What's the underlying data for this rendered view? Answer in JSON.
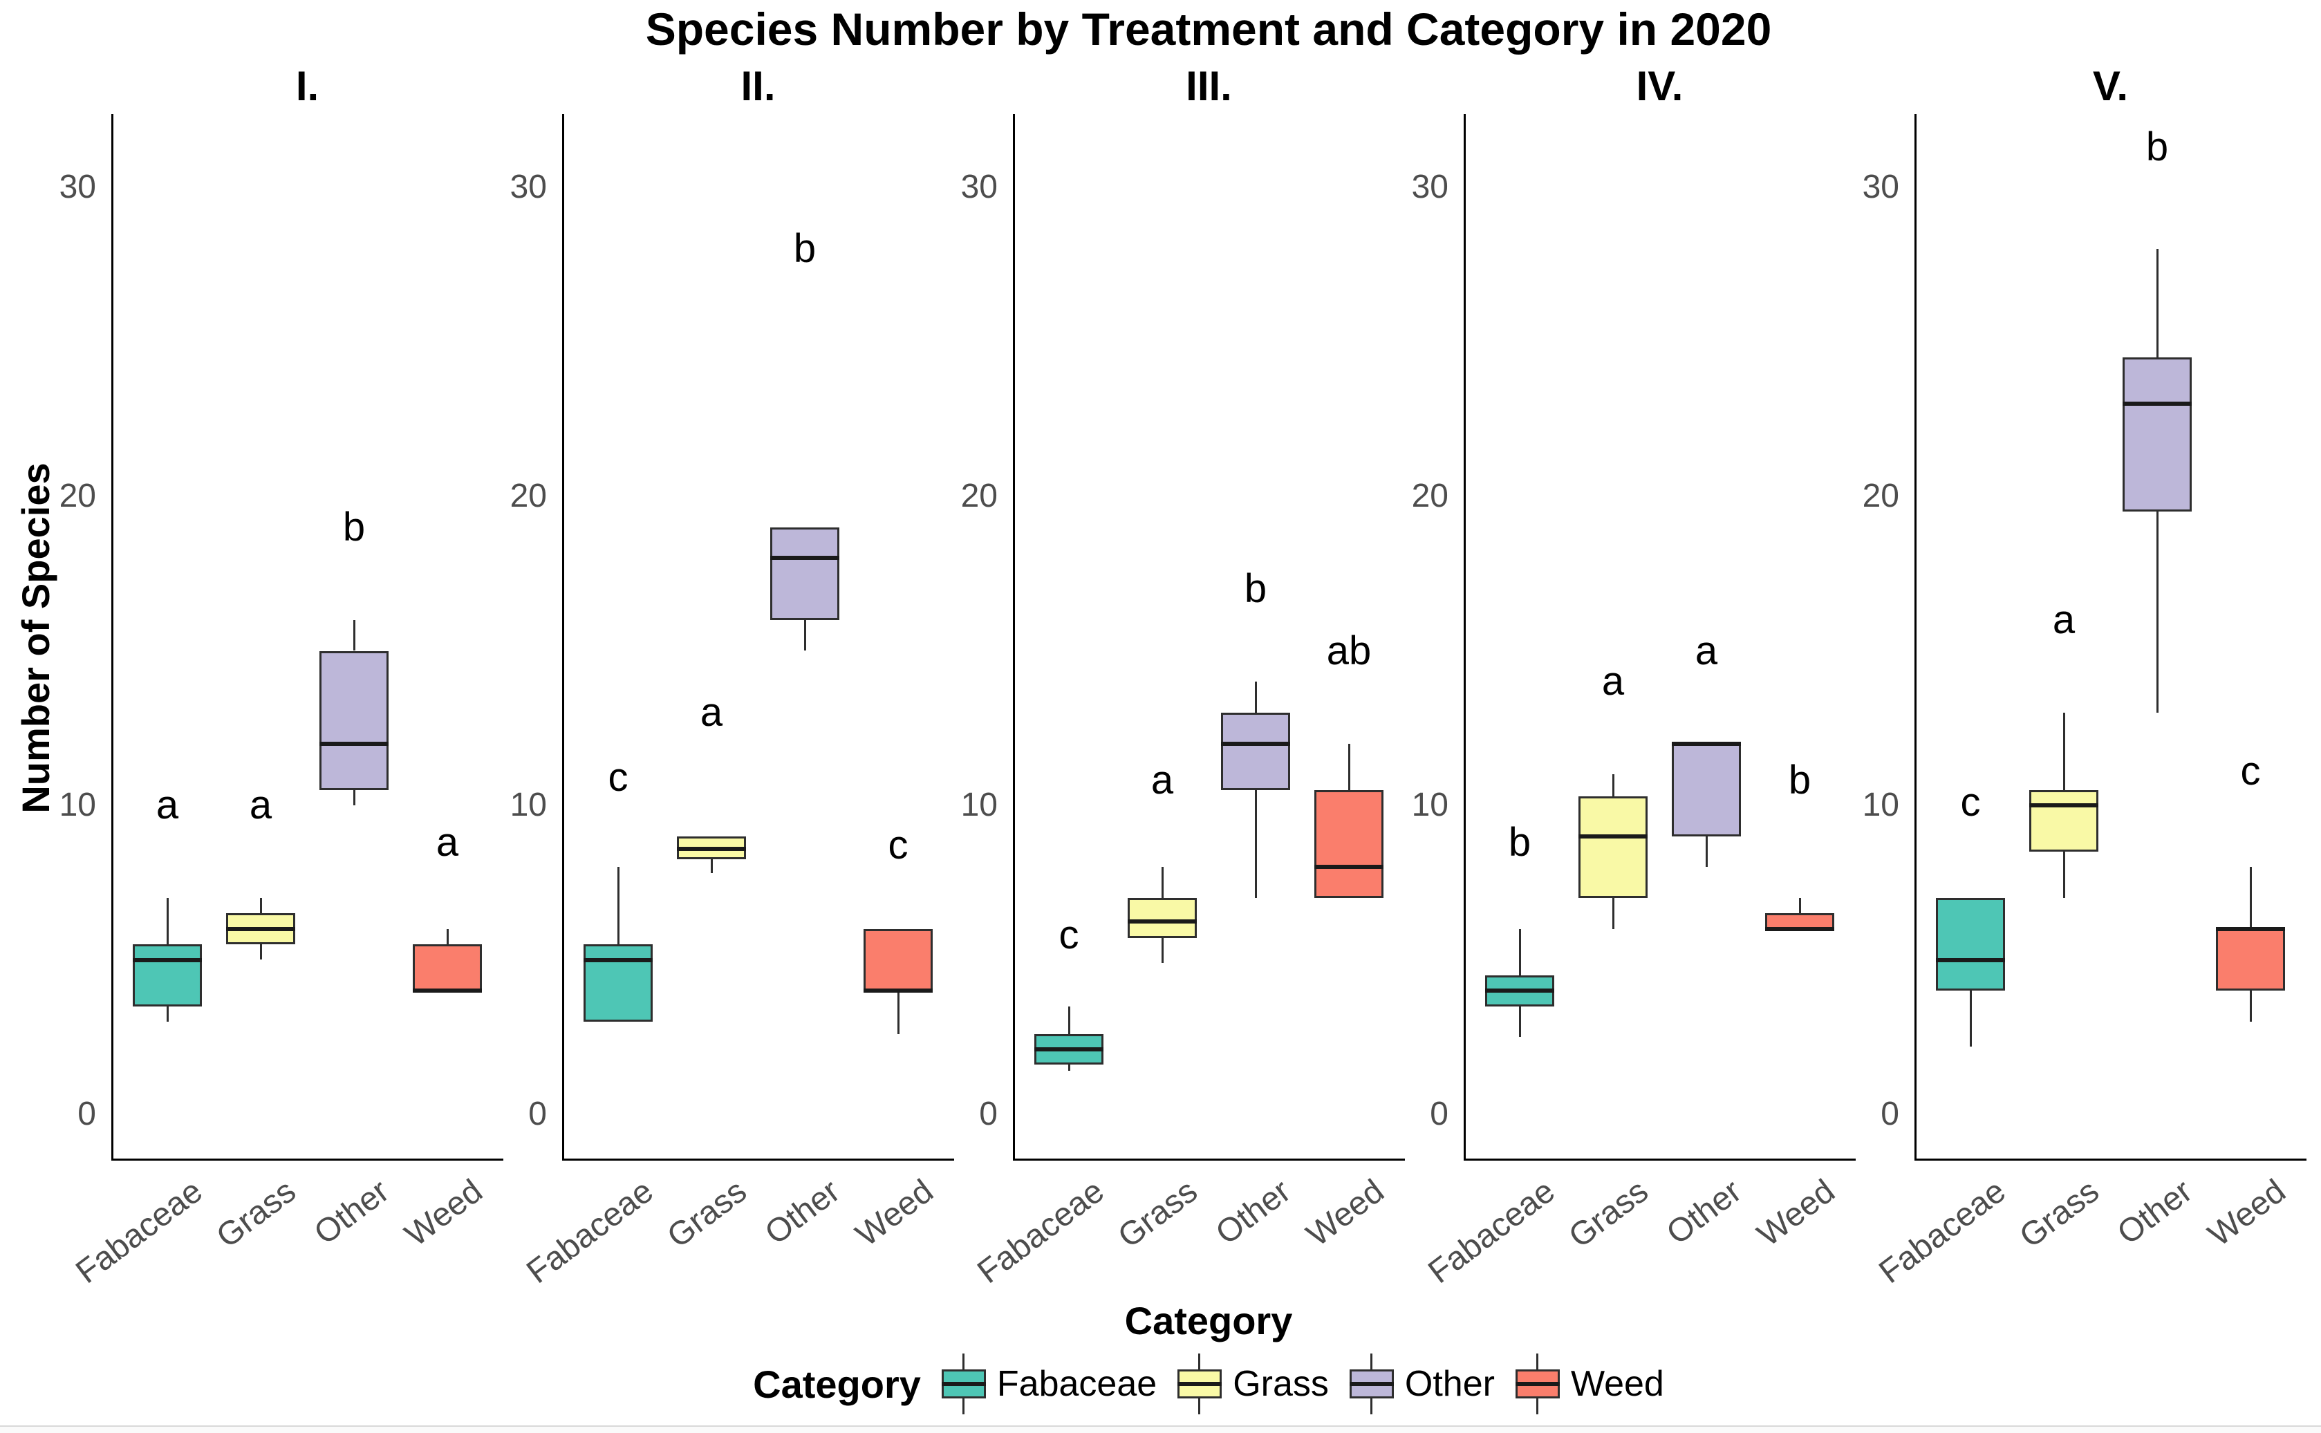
{
  "title": "Species Number by Treatment and Category in 2020",
  "legend": {
    "title": "Category",
    "items": [
      {
        "label": "Fabaceae",
        "color": "#4EC6B5"
      },
      {
        "label": "Grass",
        "color": "#F9F9A6"
      },
      {
        "label": "Other",
        "color": "#BDB7D9"
      },
      {
        "label": "Weed",
        "color": "#FA7E6C"
      }
    ]
  },
  "colors": {
    "axis_line": "#000000",
    "tick_text": "#4d4d4d",
    "box_border": "#2e2e2e",
    "median_line": "#1a1a1a",
    "background": "#ffffff"
  },
  "chart_data": {
    "type": "boxplot",
    "title": "Species Number by Treatment and Category in 2020",
    "xlabel": "Category",
    "ylabel": "Number of Species",
    "legend_position": "bottom",
    "grid": false,
    "y_ticks": [
      0,
      10,
      20,
      30
    ],
    "ylim": [
      -1.5,
      32.4
    ],
    "categories": [
      "Fabaceae",
      "Grass",
      "Other",
      "Weed"
    ],
    "palette": {
      "Fabaceae": "#4EC6B5",
      "Grass": "#F9F9A6",
      "Other": "#BDB7D9",
      "Weed": "#FA7E6C"
    },
    "facets": [
      {
        "label": "I.",
        "boxes": [
          {
            "category": "Fabaceae",
            "whisker_low": 3,
            "q1": 3.5,
            "median": 5,
            "q3": 5.5,
            "whisker_high": 7,
            "letter": "a",
            "letter_y": 10
          },
          {
            "category": "Grass",
            "whisker_low": 5,
            "q1": 5.5,
            "median": 6,
            "q3": 6.5,
            "whisker_high": 7,
            "letter": "a",
            "letter_y": 10
          },
          {
            "category": "Other",
            "whisker_low": 10,
            "q1": 10.5,
            "median": 12,
            "q3": 15,
            "whisker_high": 16,
            "letter": "b",
            "letter_y": 19
          },
          {
            "category": "Weed",
            "whisker_low": 4,
            "q1": 4,
            "median": 4,
            "q3": 5.5,
            "whisker_high": 6,
            "letter": "a",
            "letter_y": 8.8
          }
        ]
      },
      {
        "label": "II.",
        "boxes": [
          {
            "category": "Fabaceae",
            "whisker_low": 3,
            "q1": 3,
            "median": 5,
            "q3": 5.5,
            "whisker_high": 8,
            "letter": "c",
            "letter_y": 10.9
          },
          {
            "category": "Grass",
            "whisker_low": 7.8,
            "q1": 8.25,
            "median": 8.6,
            "q3": 9,
            "whisker_high": 9,
            "letter": "a",
            "letter_y": 13
          },
          {
            "category": "Other",
            "whisker_low": 15,
            "q1": 16,
            "median": 18,
            "q3": 19,
            "whisker_high": 19,
            "letter": "b",
            "letter_y": 28
          },
          {
            "category": "Weed",
            "whisker_low": 2.6,
            "q1": 4,
            "median": 4,
            "q3": 6,
            "whisker_high": 6,
            "letter": "c",
            "letter_y": 8.7
          }
        ]
      },
      {
        "label": "III.",
        "boxes": [
          {
            "category": "Fabaceae",
            "whisker_low": 1.4,
            "q1": 1.6,
            "median": 2.1,
            "q3": 2.6,
            "whisker_high": 3.5,
            "letter": "c",
            "letter_y": 5.8
          },
          {
            "category": "Grass",
            "whisker_low": 4.9,
            "q1": 5.7,
            "median": 6.25,
            "q3": 7,
            "whisker_high": 8,
            "letter": "a",
            "letter_y": 10.8
          },
          {
            "category": "Other",
            "whisker_low": 7,
            "q1": 10.5,
            "median": 12,
            "q3": 13,
            "whisker_high": 14,
            "letter": "b",
            "letter_y": 17
          },
          {
            "category": "Weed",
            "whisker_low": 7,
            "q1": 7,
            "median": 8,
            "q3": 10.5,
            "whisker_high": 12,
            "letter": "ab",
            "letter_y": 15
          }
        ]
      },
      {
        "label": "IV.",
        "boxes": [
          {
            "category": "Fabaceae",
            "whisker_low": 2.5,
            "q1": 3.5,
            "median": 4,
            "q3": 4.5,
            "whisker_high": 6,
            "letter": "b",
            "letter_y": 8.8
          },
          {
            "category": "Grass",
            "whisker_low": 6,
            "q1": 7,
            "median": 9,
            "q3": 10.3,
            "whisker_high": 11,
            "letter": "a",
            "letter_y": 14
          },
          {
            "category": "Other",
            "whisker_low": 8,
            "q1": 9,
            "median": 12,
            "q3": 12,
            "whisker_high": 12,
            "letter": "a",
            "letter_y": 15
          },
          {
            "category": "Weed",
            "whisker_low": 6,
            "q1": 6,
            "median": 6,
            "q3": 6.5,
            "whisker_high": 7,
            "letter": "b",
            "letter_y": 10.8
          }
        ]
      },
      {
        "label": "V.",
        "boxes": [
          {
            "category": "Fabaceae",
            "whisker_low": 2.2,
            "q1": 4,
            "median": 5,
            "q3": 7,
            "whisker_high": 7,
            "letter": "c",
            "letter_y": 10.1
          },
          {
            "category": "Grass",
            "whisker_low": 7,
            "q1": 8.5,
            "median": 10,
            "q3": 10.5,
            "whisker_high": 13,
            "letter": "a",
            "letter_y": 16
          },
          {
            "category": "Other",
            "whisker_low": 13,
            "q1": 19.5,
            "median": 23,
            "q3": 24.5,
            "whisker_high": 28,
            "letter": "b",
            "letter_y": 31.3
          },
          {
            "category": "Weed",
            "whisker_low": 3,
            "q1": 4,
            "median": 6,
            "q3": 6,
            "whisker_high": 8,
            "letter": "c",
            "letter_y": 11.1
          }
        ]
      }
    ]
  }
}
